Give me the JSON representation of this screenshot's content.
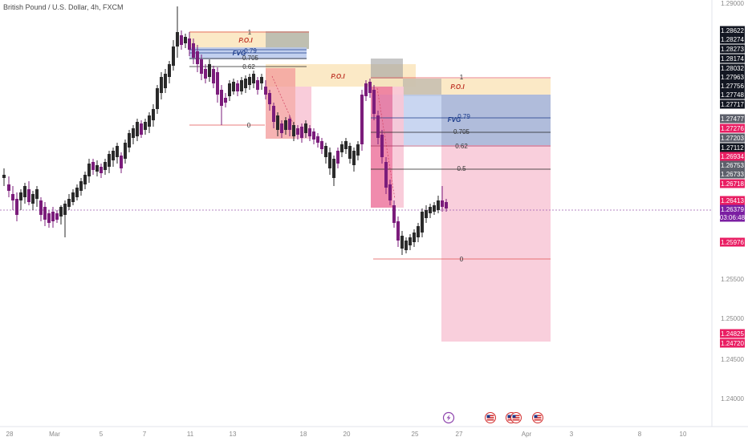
{
  "symbol": {
    "title": "British Pound / U.S. Dollar, 4h, FXCM"
  },
  "price_axis": {
    "ticks": [
      "1.29000",
      "1.25500",
      "1.25000",
      "1.24500",
      "1.24000"
    ],
    "labels": [
      {
        "text": "1.28622",
        "color": "#131722"
      },
      {
        "text": "1.28274",
        "color": "#131722"
      },
      {
        "text": "1.28273",
        "color": "#131722"
      },
      {
        "text": "1.28174",
        "color": "#131722"
      },
      {
        "text": "1.28032",
        "color": "#131722"
      },
      {
        "text": "1.27963",
        "color": "#131722"
      },
      {
        "text": "1.27756",
        "color": "#131722"
      },
      {
        "text": "1.27748",
        "color": "#131722"
      },
      {
        "text": "1.27717",
        "color": "#131722"
      },
      {
        "text": "1.27477",
        "color": "#5d606b"
      },
      {
        "text": "1.27276",
        "color": "#e91e63"
      },
      {
        "text": "1.27203",
        "color": "#5d606b"
      },
      {
        "text": "1.27112",
        "color": "#131722"
      },
      {
        "text": "1.26934",
        "color": "#e91e63"
      },
      {
        "text": "1.26753",
        "color": "#5d606b"
      },
      {
        "text": "1.26733",
        "color": "#5d606b"
      },
      {
        "text": "1.26718",
        "color": "#e91e63"
      },
      {
        "text": "1.26413",
        "color": "#e91e63"
      },
      {
        "text": "1.26379",
        "color": "#7b1fa2"
      },
      {
        "text": "03:06:48",
        "color": "#7b1fa2"
      },
      {
        "text": "1.25976",
        "color": "#e91e63"
      },
      {
        "text": "1.24825",
        "color": "#e91e63"
      },
      {
        "text": "1.24720",
        "color": "#e91e63"
      }
    ]
  },
  "time_axis": {
    "ticks": [
      "28",
      "Mar",
      "5",
      "7",
      "11",
      "13",
      "18",
      "20",
      "25",
      "27",
      "Apr",
      "3",
      "8",
      "10"
    ]
  },
  "drawings": {
    "poi_labels": [
      "P.O.I",
      "P.O.I",
      "P.O.I"
    ],
    "fvg_labels": [
      "FVG",
      "FVG"
    ],
    "fib_levels": [
      "1",
      "0.79",
      "0.705",
      "0.62",
      "0.5",
      "0"
    ]
  },
  "events": [
    {
      "icon": "lightning-icon"
    },
    {
      "icon": "us-flag-icon"
    },
    {
      "icon": "us-flag-icon"
    },
    {
      "icon": "us-flag-icon"
    },
    {
      "icon": "us-flag-icon"
    }
  ],
  "colors": {
    "bull": "#2a2a2a",
    "bear": "#7b1c7b",
    "poi_fill": "#fbe7c0",
    "fvg_fill": "#b7c8ec",
    "target_fill": "#f8c7d6",
    "grey_fill": "#a0a0a0",
    "fib_red": "#e05050",
    "fib_dark": "#222222"
  }
}
